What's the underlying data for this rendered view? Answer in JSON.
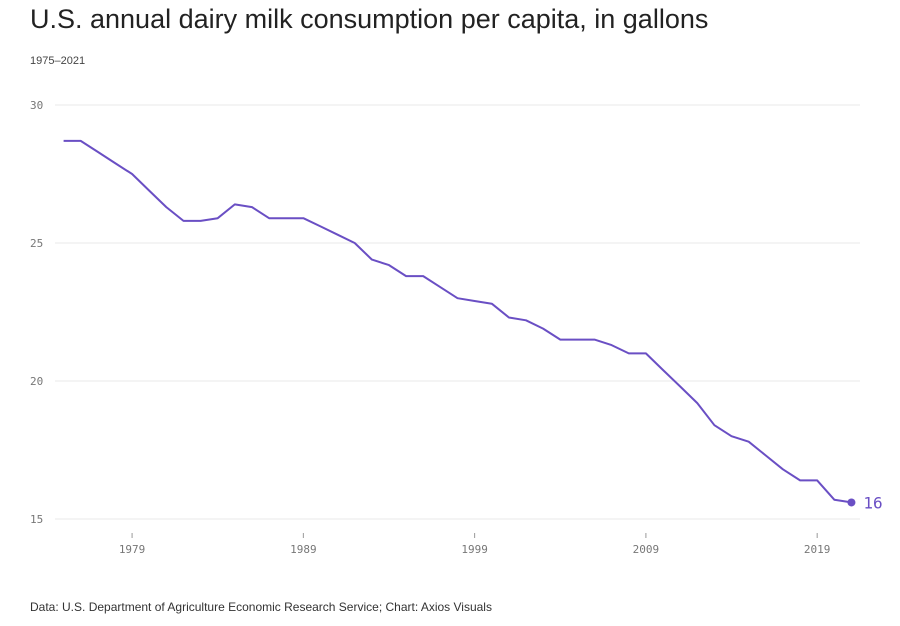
{
  "title": "U.S. annual dairy milk consumption per capita, in gallons",
  "subtitle": "1975–2021",
  "source": "Data: U.S. Department of Agriculture Economic Research Service; Chart: Axios Visuals",
  "colors": {
    "line": "#6a4fc4",
    "grid": "#e8e8e8",
    "tick": "#777777"
  },
  "chart_data": {
    "type": "line",
    "x": [
      1975,
      1976,
      1977,
      1978,
      1979,
      1980,
      1981,
      1982,
      1983,
      1984,
      1985,
      1986,
      1987,
      1988,
      1989,
      1990,
      1991,
      1992,
      1993,
      1994,
      1995,
      1996,
      1997,
      1998,
      1999,
      2000,
      2001,
      2002,
      2003,
      2004,
      2005,
      2006,
      2007,
      2008,
      2009,
      2010,
      2011,
      2012,
      2013,
      2014,
      2015,
      2016,
      2017,
      2018,
      2019,
      2020,
      2021
    ],
    "series": [
      {
        "values": [
          28.7,
          28.7,
          28.3,
          27.9,
          27.5,
          26.9,
          26.3,
          25.8,
          25.8,
          25.9,
          26.4,
          26.3,
          25.9,
          25.9,
          25.9,
          25.6,
          25.3,
          25.0,
          24.4,
          24.2,
          23.8,
          23.8,
          23.4,
          23.0,
          22.9,
          22.8,
          22.3,
          22.2,
          21.9,
          21.5,
          21.5,
          21.5,
          21.3,
          21.0,
          21.0,
          20.4,
          19.8,
          19.2,
          18.4,
          18.0,
          17.8,
          17.3,
          16.8,
          16.4,
          16.4,
          15.7,
          15.6
        ]
      }
    ],
    "x_ticks": [
      "1979",
      "1989",
      "1999",
      "2009",
      "2019"
    ],
    "y_ticks": [
      "30",
      "25",
      "20",
      "15"
    ],
    "xlim": [
      1974.5,
      2021.5
    ],
    "ylim": [
      15,
      30
    ],
    "grid": true,
    "end_label": "16"
  }
}
